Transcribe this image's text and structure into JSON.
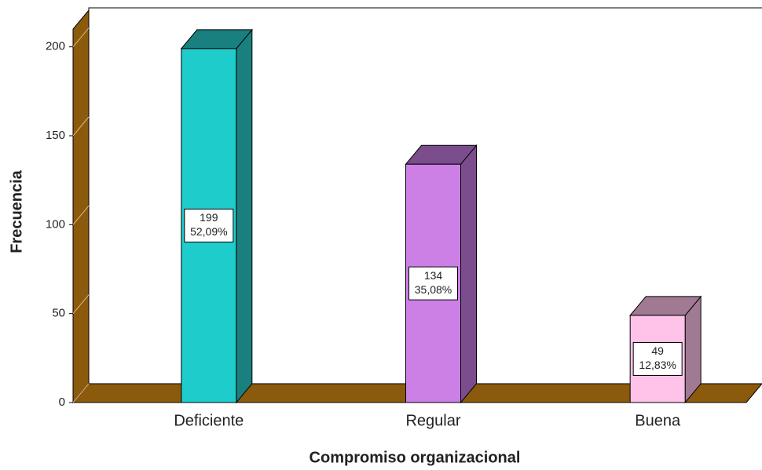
{
  "chart_data": {
    "type": "bar3d",
    "x_label": "Compromiso organizacional",
    "y_label": "Frecuencia",
    "categories": [
      "Deficiente",
      "Regular",
      "Buena"
    ],
    "values": [
      199,
      134,
      49
    ],
    "percent_values": [
      52.09,
      35.08,
      12.83
    ],
    "percent_labels": [
      "52,09%",
      "35,08%",
      "12,83%"
    ],
    "colors": [
      "#1fcccc",
      "#cc80e6",
      "#ffc2e8"
    ],
    "side_colors": [
      "#1a7f7f",
      "#7b4d8c",
      "#a07a92"
    ],
    "wall_color": "#8b5a0c",
    "ylim": [
      0,
      210
    ],
    "yticks": [
      0,
      50,
      100,
      150,
      200
    ]
  }
}
